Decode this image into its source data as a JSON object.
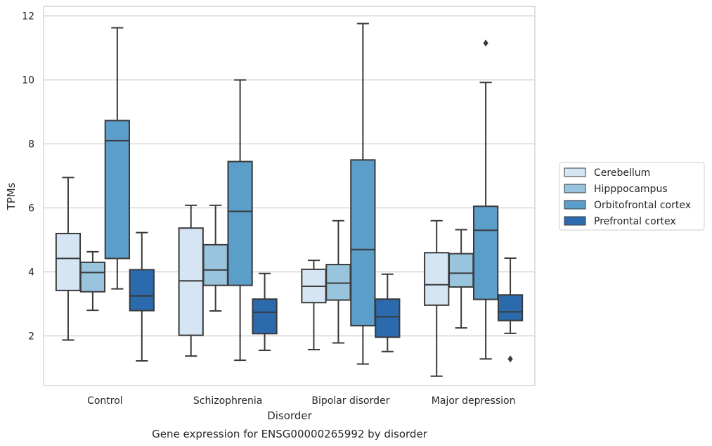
{
  "chart_data": {
    "type": "box",
    "caption": "Gene expression for ENSG00000265992 by disorder",
    "xlabel": "Disorder",
    "ylabel": "TPMs",
    "ylim": [
      0.45,
      12.3
    ],
    "yticks": [
      2,
      4,
      6,
      8,
      10,
      12
    ],
    "grid": "horizontal",
    "legend_position": "right",
    "categories": [
      "Control",
      "Schizophrenia",
      "Bipolar disorder",
      "Major depression"
    ],
    "series": [
      {
        "name": "Cerebellum",
        "color": "#d5e5f3",
        "boxes": [
          {
            "whisker_low": 1.87,
            "q1": 3.42,
            "median": 4.42,
            "q3": 5.2,
            "whisker_high": 6.95,
            "outliers": []
          },
          {
            "whisker_low": 1.37,
            "q1": 2.02,
            "median": 3.72,
            "q3": 5.37,
            "whisker_high": 6.08,
            "outliers": []
          },
          {
            "whisker_low": 1.57,
            "q1": 3.04,
            "median": 3.55,
            "q3": 4.08,
            "whisker_high": 4.36,
            "outliers": []
          },
          {
            "whisker_low": 0.74,
            "q1": 2.96,
            "median": 3.6,
            "q3": 4.6,
            "whisker_high": 5.6,
            "outliers": []
          }
        ]
      },
      {
        "name": "Hipppocampus",
        "color": "#99c4de",
        "boxes": [
          {
            "whisker_low": 2.8,
            "q1": 3.38,
            "median": 3.98,
            "q3": 4.3,
            "whisker_high": 4.63,
            "outliers": []
          },
          {
            "whisker_low": 2.78,
            "q1": 3.58,
            "median": 4.06,
            "q3": 4.85,
            "whisker_high": 6.08,
            "outliers": []
          },
          {
            "whisker_low": 1.78,
            "q1": 3.12,
            "median": 3.65,
            "q3": 4.23,
            "whisker_high": 5.6,
            "outliers": []
          },
          {
            "whisker_low": 2.25,
            "q1": 3.53,
            "median": 3.96,
            "q3": 4.57,
            "whisker_high": 5.32,
            "outliers": []
          }
        ]
      },
      {
        "name": "Orbitofrontal cortex",
        "color": "#5b9ec9",
        "boxes": [
          {
            "whisker_low": 3.47,
            "q1": 4.42,
            "median": 8.1,
            "q3": 8.73,
            "whisker_high": 11.63,
            "outliers": []
          },
          {
            "whisker_low": 1.24,
            "q1": 3.58,
            "median": 5.89,
            "q3": 7.45,
            "whisker_high": 10.0,
            "outliers": []
          },
          {
            "whisker_low": 1.12,
            "q1": 2.32,
            "median": 4.7,
            "q3": 7.5,
            "whisker_high": 11.76,
            "outliers": []
          },
          {
            "whisker_low": 1.28,
            "q1": 3.14,
            "median": 5.3,
            "q3": 6.05,
            "whisker_high": 9.92,
            "outliers": [
              11.15
            ]
          }
        ]
      },
      {
        "name": "Prefrontal cortex",
        "color": "#2a6aad",
        "boxes": [
          {
            "whisker_low": 1.22,
            "q1": 2.79,
            "median": 3.25,
            "q3": 4.07,
            "whisker_high": 5.23,
            "outliers": []
          },
          {
            "whisker_low": 1.55,
            "q1": 2.07,
            "median": 2.74,
            "q3": 3.15,
            "whisker_high": 3.95,
            "outliers": []
          },
          {
            "whisker_low": 1.51,
            "q1": 1.96,
            "median": 2.6,
            "q3": 3.15,
            "whisker_high": 3.93,
            "outliers": []
          },
          {
            "whisker_low": 2.08,
            "q1": 2.48,
            "median": 2.75,
            "q3": 3.28,
            "whisker_high": 4.43,
            "outliers": [
              1.28
            ]
          }
        ]
      }
    ]
  }
}
